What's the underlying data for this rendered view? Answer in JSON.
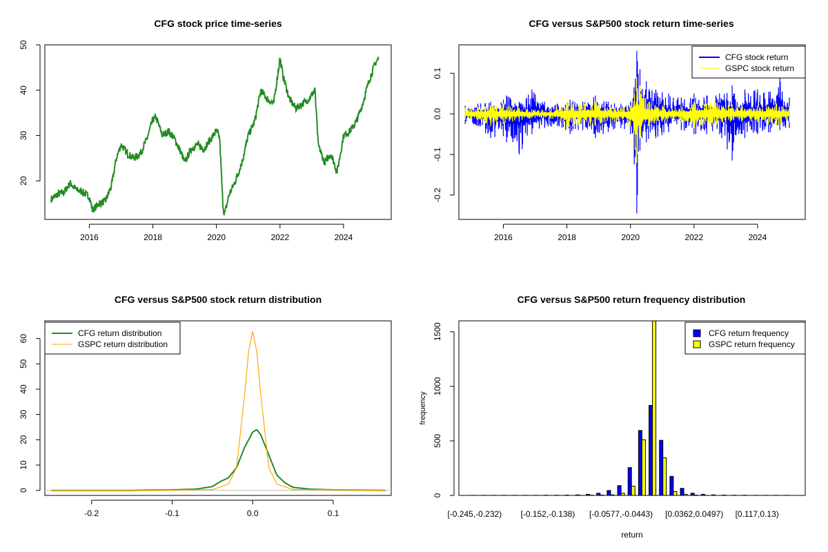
{
  "chart_data": [
    {
      "type": "line",
      "title": "CFG stock price time-series",
      "xlabel": "",
      "ylabel": "",
      "xlim": [
        2014.6,
        2025.5
      ],
      "ylim": [
        11.5,
        50
      ],
      "xticks": [
        "2016",
        "2018",
        "2020",
        "2022",
        "2024"
      ],
      "yticks": [
        "20",
        "30",
        "40",
        "50"
      ],
      "color": "#228B22",
      "series": [
        {
          "name": "",
          "x": [
            2014.8,
            2015.0,
            2015.2,
            2015.4,
            2015.6,
            2015.8,
            2016.0,
            2016.1,
            2016.3,
            2016.5,
            2016.7,
            2016.85,
            2017.0,
            2017.2,
            2017.4,
            2017.6,
            2017.8,
            2018.0,
            2018.1,
            2018.3,
            2018.5,
            2018.7,
            2018.9,
            2019.0,
            2019.2,
            2019.4,
            2019.6,
            2019.8,
            2020.0,
            2020.1,
            2020.2,
            2020.25,
            2020.4,
            2020.6,
            2020.8,
            2021.0,
            2021.2,
            2021.4,
            2021.6,
            2021.8,
            2022.0,
            2022.1,
            2022.3,
            2022.5,
            2022.7,
            2022.9,
            2023.1,
            2023.2,
            2023.4,
            2023.6,
            2023.8,
            2024.0,
            2024.2,
            2024.4,
            2024.6,
            2024.8,
            2025.0,
            2025.1
          ],
          "values": [
            16,
            17,
            17.5,
            19.5,
            18,
            17.5,
            16.5,
            13.5,
            15,
            15.5,
            19,
            25,
            28,
            26,
            25,
            26,
            29,
            33.5,
            34,
            30,
            31,
            29,
            26,
            24,
            27,
            28,
            27,
            29,
            31,
            29.5,
            15,
            12.5,
            17,
            20,
            24,
            30,
            33,
            40,
            38,
            37,
            47,
            43,
            38,
            36,
            37,
            38,
            40,
            28,
            24,
            26,
            22,
            30,
            31,
            33,
            37,
            42,
            46,
            47
          ]
        }
      ]
    },
    {
      "type": "line",
      "title": "CFG versus S&P500 stock return time-series",
      "xlabel": "",
      "ylabel": "",
      "xlim": [
        2014.6,
        2025.5
      ],
      "ylim": [
        -0.26,
        0.17
      ],
      "xticks": [
        "2016",
        "2018",
        "2020",
        "2022",
        "2024"
      ],
      "yticks": [
        "-0.2",
        "-0.1",
        "0.0",
        "0.1"
      ],
      "legend": "top-right",
      "series": [
        {
          "name": "CFG stock return",
          "color": "#0000FF",
          "x": [
            2014.8,
            2015.2,
            2015.6,
            2016.0,
            2016.1,
            2016.5,
            2016.9,
            2017.3,
            2017.7,
            2018.1,
            2018.5,
            2018.9,
            2019.3,
            2019.7,
            2020.0,
            2020.2,
            2020.22,
            2020.3,
            2020.5,
            2020.8,
            2021.2,
            2021.6,
            2022.0,
            2022.4,
            2022.8,
            2023.2,
            2023.25,
            2023.6,
            2024.0,
            2024.4,
            2024.7,
            2025.0
          ],
          "upper": [
            0.02,
            0.025,
            0.03,
            0.035,
            0.045,
            0.03,
            0.06,
            0.03,
            0.025,
            0.035,
            0.03,
            0.045,
            0.03,
            0.025,
            0.03,
            0.155,
            0.13,
            0.11,
            0.08,
            0.06,
            0.05,
            0.04,
            0.05,
            0.045,
            0.05,
            0.07,
            0.05,
            0.06,
            0.06,
            0.055,
            0.09,
            0.04
          ],
          "lower": [
            -0.025,
            -0.03,
            -0.06,
            -0.055,
            -0.07,
            -0.1,
            -0.05,
            -0.035,
            -0.03,
            -0.05,
            -0.04,
            -0.06,
            -0.045,
            -0.035,
            -0.05,
            -0.245,
            -0.2,
            -0.09,
            -0.07,
            -0.06,
            -0.045,
            -0.04,
            -0.05,
            -0.05,
            -0.05,
            -0.115,
            -0.07,
            -0.06,
            -0.05,
            -0.045,
            -0.04,
            -0.035
          ]
        },
        {
          "name": "GSPC stock return",
          "color": "#FFFF00",
          "x": [
            2014.8,
            2015.6,
            2016.0,
            2016.5,
            2017.0,
            2017.5,
            2018.0,
            2018.2,
            2018.9,
            2019.5,
            2020.0,
            2020.2,
            2020.3,
            2020.6,
            2021.0,
            2021.6,
            2022.0,
            2022.5,
            2023.0,
            2023.5,
            2024.0,
            2024.6,
            2025.0
          ],
          "upper": [
            0.015,
            0.02,
            0.025,
            0.015,
            0.01,
            0.012,
            0.03,
            0.025,
            0.03,
            0.015,
            0.02,
            0.09,
            0.07,
            0.03,
            0.02,
            0.015,
            0.03,
            0.03,
            0.025,
            0.02,
            0.02,
            0.025,
            0.02
          ],
          "lower": [
            -0.015,
            -0.03,
            -0.025,
            -0.02,
            -0.01,
            -0.012,
            -0.04,
            -0.03,
            -0.03,
            -0.02,
            -0.03,
            -0.12,
            -0.06,
            -0.03,
            -0.02,
            -0.02,
            -0.035,
            -0.03,
            -0.025,
            -0.02,
            -0.02,
            -0.03,
            -0.02
          ]
        }
      ]
    },
    {
      "type": "line",
      "title": "CFG versus S&P500 stock return distribution",
      "xlabel": "",
      "ylabel": "",
      "xlim": [
        -0.258,
        0.172
      ],
      "ylim": [
        -2,
        67
      ],
      "xticks": [
        "-0.2",
        "-0.1",
        "0.0",
        "0.1"
      ],
      "yticks": [
        "0",
        "10",
        "20",
        "30",
        "40",
        "50",
        "60"
      ],
      "legend": "top-left",
      "series": [
        {
          "name": "CFG return distribution",
          "color": "#228B22",
          "x": [
            -0.25,
            -0.15,
            -0.1,
            -0.07,
            -0.05,
            -0.04,
            -0.03,
            -0.02,
            -0.01,
            0.0,
            0.005,
            0.01,
            0.02,
            0.03,
            0.04,
            0.05,
            0.07,
            0.1,
            0.165
          ],
          "values": [
            0,
            0,
            0.2,
            0.5,
            1.5,
            3.5,
            5,
            9,
            17,
            23,
            24,
            22,
            14,
            6,
            3,
            1.2,
            0.5,
            0.2,
            0
          ]
        },
        {
          "name": "GSPC return distribution",
          "color": "#FFA500",
          "x": [
            -0.25,
            -0.12,
            -0.05,
            -0.03,
            -0.02,
            -0.01,
            -0.005,
            0.0,
            0.005,
            0.01,
            0.02,
            0.03,
            0.05,
            0.165
          ],
          "values": [
            0,
            0,
            0.3,
            2.5,
            9,
            38,
            55,
            63,
            55,
            38,
            9,
            2.5,
            0.3,
            0
          ]
        }
      ]
    },
    {
      "type": "bar",
      "title": "CFG versus S&P500 return frequency distribution",
      "xlabel": "return",
      "ylabel": "frequency",
      "ylim": [
        0,
        1600
      ],
      "yticks": [
        "0",
        "500",
        "1000",
        "1500"
      ],
      "legend": "top-right",
      "xticklabels": [
        "[-0.245,-0.232)",
        "[-0.152,-0.138)",
        "[-0.0577,-0.0443)",
        "[0.0362,0.0497)",
        "[0.117,0.13)"
      ],
      "xticklabel_bins": [
        0,
        7,
        14,
        21,
        27
      ],
      "bin_count": 31,
      "series": [
        {
          "name": "CFG return frequency",
          "color": "#0000FF",
          "values": [
            1,
            1,
            1,
            1,
            1,
            1,
            1,
            2,
            2,
            3,
            5,
            10,
            20,
            45,
            90,
            255,
            595,
            825,
            505,
            175,
            65,
            20,
            10,
            5,
            3,
            2,
            2,
            1,
            1,
            1,
            1
          ]
        },
        {
          "name": "GSPC return frequency",
          "color": "#FFFF00",
          "values": [
            0,
            0,
            0,
            0,
            0,
            0,
            0,
            0,
            0,
            0,
            1,
            2,
            3,
            5,
            20,
            85,
            510,
            1600,
            345,
            35,
            10,
            3,
            1,
            0,
            0,
            0,
            0,
            0,
            0,
            0,
            0
          ]
        }
      ]
    }
  ]
}
